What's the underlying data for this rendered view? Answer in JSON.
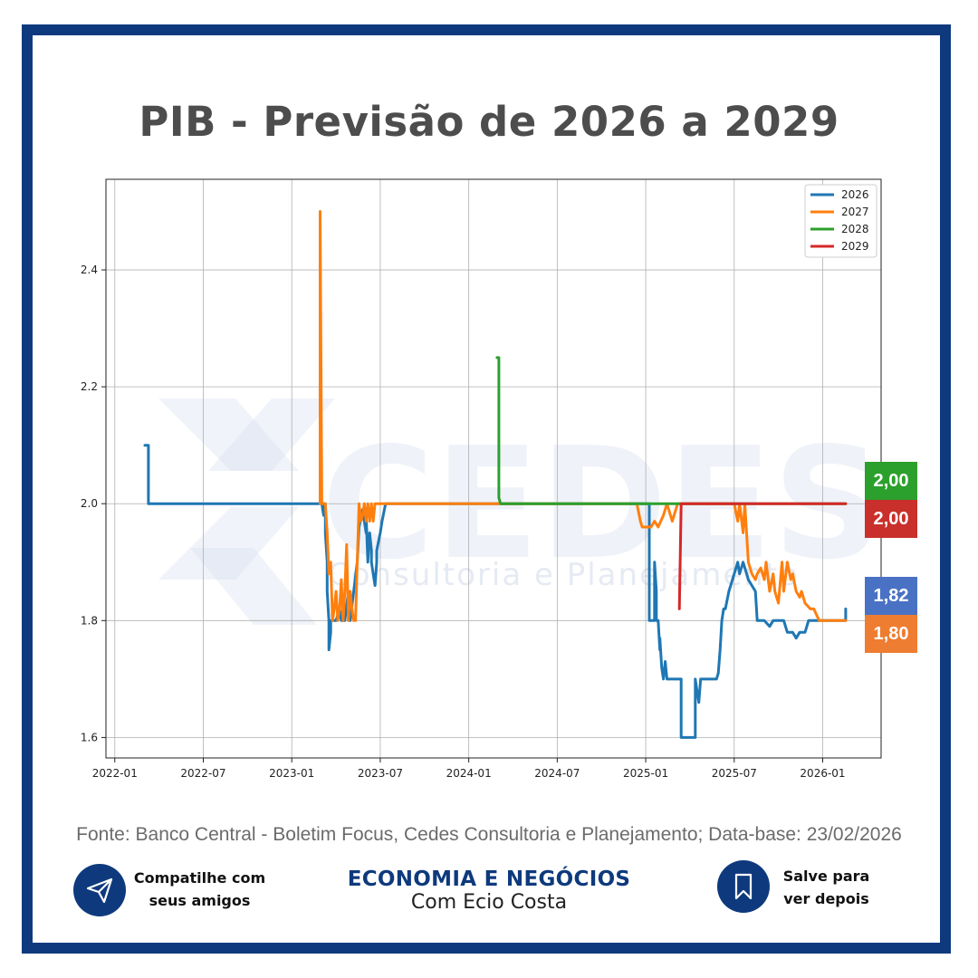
{
  "title": "PIB - Previsão de 2026 a 2029",
  "watermark": {
    "name": "CEDES",
    "tagline": "Consultoria e Planejamento"
  },
  "source": "Fonte: Banco Central - Boletim Focus, Cedes Consultoria e Planejamento; Data-base: 23/02/2026",
  "share": {
    "line1": "Compatilhe com",
    "line2": "seus amigos",
    "icon": "paper-plane-icon"
  },
  "save": {
    "line1": "Salve para",
    "line2": "ver depois",
    "icon": "bookmark-icon"
  },
  "brand": {
    "title": "ECONOMIA E NEGÓCIOS",
    "subtitle": "Com Ecio Costa"
  },
  "badges": [
    {
      "label": "2,00",
      "series": "2028",
      "color": "#2ca02c"
    },
    {
      "label": "2,00",
      "series": "2029",
      "color": "#c9302c"
    },
    {
      "label": "1,82",
      "series": "2026",
      "color": "#4a72c4"
    },
    {
      "label": "1,80",
      "series": "2027",
      "color": "#ee7d31"
    }
  ],
  "chart_data": {
    "type": "line",
    "title": "",
    "xlabel": "",
    "ylabel": "",
    "xlim": [
      2021.95,
      2026.33
    ],
    "ylim": [
      1.565,
      2.555
    ],
    "grid": true,
    "legend_position": "top-right",
    "x_ticks": [
      {
        "label": "2022-01",
        "value": 2022.0
      },
      {
        "label": "2022-07",
        "value": 2022.5
      },
      {
        "label": "2023-01",
        "value": 2023.0
      },
      {
        "label": "2023-07",
        "value": 2023.5
      },
      {
        "label": "2024-01",
        "value": 2024.0
      },
      {
        "label": "2024-07",
        "value": 2024.5
      },
      {
        "label": "2025-01",
        "value": 2025.0
      },
      {
        "label": "2025-07",
        "value": 2025.5
      },
      {
        "label": "2026-01",
        "value": 2026.0
      }
    ],
    "y_ticks": [
      {
        "label": "1.6",
        "value": 1.6
      },
      {
        "label": "1.8",
        "value": 1.8
      },
      {
        "label": "2.0",
        "value": 2.0
      },
      {
        "label": "2.2",
        "value": 2.2
      },
      {
        "label": "2.4",
        "value": 2.4
      }
    ],
    "series": [
      {
        "name": "2026",
        "color": "#1f77b4",
        "x": [
          2022.17,
          2022.19,
          2022.19,
          2022.21,
          2023.17,
          2023.18,
          2023.18,
          2023.19,
          2023.19,
          2023.2,
          2023.2,
          2023.21,
          2023.21,
          2023.22,
          2023.22,
          2023.23,
          2023.23,
          2023.25,
          2023.27,
          2023.28,
          2023.3,
          2023.32,
          2023.33,
          2023.35,
          2023.37,
          2023.38,
          2023.4,
          2023.42,
          2023.42,
          2023.43,
          2023.44,
          2023.45,
          2023.45,
          2023.46,
          2023.47,
          2023.48,
          2023.48,
          2023.5,
          2023.51,
          2023.53,
          2023.54,
          2023.55,
          2023.56,
          2023.56,
          2023.57,
          2023.6,
          2025.0,
          2025.02,
          2025.02,
          2025.03,
          2025.05,
          2025.05,
          2025.06,
          2025.06,
          2025.07,
          2025.08,
          2025.08,
          2025.09,
          2025.1,
          2025.11,
          2025.12,
          2025.13,
          2025.15,
          2025.17,
          2025.2,
          2025.2,
          2025.23,
          2025.27,
          2025.28,
          2025.28,
          2025.29,
          2025.3,
          2025.31,
          2025.32,
          2025.33,
          2025.35,
          2025.38,
          2025.4,
          2025.41,
          2025.42,
          2025.43,
          2025.44,
          2025.45,
          2025.47,
          2025.48,
          2025.5,
          2025.52,
          2025.53,
          2025.55,
          2025.57,
          2025.58,
          2025.6,
          2025.62,
          2025.63,
          2025.65,
          2025.67,
          2025.7,
          2025.72,
          2025.75,
          2025.78,
          2025.8,
          2025.82,
          2025.83,
          2025.85,
          2025.87,
          2025.9,
          2025.92,
          2025.93,
          2025.95,
          2025.97,
          2026.0,
          2026.03,
          2026.05,
          2026.08,
          2026.1,
          2026.13,
          2026.13
        ],
        "y": [
          2.1,
          2.1,
          2.0,
          2.0,
          2.0,
          1.98,
          2.0,
          2.0,
          1.95,
          1.9,
          1.85,
          1.8,
          1.75,
          1.78,
          1.8,
          1.8,
          1.8,
          1.8,
          1.82,
          1.8,
          1.8,
          1.85,
          1.8,
          1.85,
          1.9,
          1.96,
          1.99,
          1.95,
          1.98,
          1.9,
          1.95,
          1.92,
          1.9,
          1.88,
          1.86,
          1.9,
          1.92,
          1.95,
          1.97,
          2.0,
          2.0,
          2.0,
          2.0,
          2.0,
          2.0,
          2.0,
          2.0,
          2.0,
          1.8,
          1.8,
          1.8,
          1.9,
          1.85,
          1.8,
          1.8,
          1.75,
          1.77,
          1.72,
          1.7,
          1.73,
          1.7,
          1.7,
          1.7,
          1.7,
          1.7,
          1.6,
          1.6,
          1.6,
          1.6,
          1.7,
          1.68,
          1.66,
          1.7,
          1.7,
          1.7,
          1.7,
          1.7,
          1.7,
          1.71,
          1.75,
          1.8,
          1.82,
          1.82,
          1.85,
          1.86,
          1.88,
          1.9,
          1.88,
          1.9,
          1.88,
          1.87,
          1.86,
          1.85,
          1.8,
          1.8,
          1.8,
          1.79,
          1.8,
          1.8,
          1.8,
          1.78,
          1.78,
          1.78,
          1.77,
          1.78,
          1.78,
          1.8,
          1.8,
          1.8,
          1.8,
          1.8,
          1.8,
          1.8,
          1.8,
          1.8,
          1.8,
          1.82
        ]
      },
      {
        "name": "2027",
        "color": "#ff7f0e",
        "x": [
          2023.16,
          2023.16,
          2023.17,
          2023.19,
          2023.2,
          2023.21,
          2023.22,
          2023.23,
          2023.24,
          2023.25,
          2023.26,
          2023.27,
          2023.28,
          2023.29,
          2023.3,
          2023.31,
          2023.32,
          2023.33,
          2023.34,
          2023.35,
          2023.36,
          2023.37,
          2023.38,
          2023.39,
          2023.4,
          2023.41,
          2023.42,
          2023.43,
          2023.44,
          2023.45,
          2023.46,
          2023.47,
          2023.48,
          2023.49,
          2023.5,
          2023.52,
          2023.55,
          2023.6,
          2024.17,
          2024.2,
          2024.5,
          2024.9,
          2024.95,
          2024.97,
          2024.98,
          2025.0,
          2025.03,
          2025.05,
          2025.07,
          2025.1,
          2025.12,
          2025.15,
          2025.18,
          2025.2,
          2025.2,
          2025.22,
          2025.25,
          2025.3,
          2025.4,
          2025.45,
          2025.5,
          2025.52,
          2025.53,
          2025.55,
          2025.56,
          2025.58,
          2025.6,
          2025.62,
          2025.63,
          2025.65,
          2025.67,
          2025.68,
          2025.7,
          2025.72,
          2025.73,
          2025.75,
          2025.77,
          2025.78,
          2025.8,
          2025.82,
          2025.83,
          2025.85,
          2025.87,
          2025.88,
          2025.9,
          2025.93,
          2025.95,
          2025.98,
          2026.0,
          2026.05,
          2026.1,
          2026.13
        ],
        "y": [
          2.0,
          2.5,
          2.0,
          2.0,
          1.95,
          1.88,
          1.9,
          1.8,
          1.82,
          1.85,
          1.8,
          1.82,
          1.87,
          1.8,
          1.85,
          1.93,
          1.8,
          1.85,
          1.82,
          1.8,
          1.8,
          1.9,
          2.0,
          1.97,
          1.98,
          2.0,
          1.97,
          2.0,
          1.97,
          2.0,
          1.97,
          2.0,
          2.0,
          2.0,
          2.0,
          2.0,
          2.0,
          2.0,
          2.0,
          2.0,
          2.0,
          2.0,
          2.0,
          1.97,
          1.96,
          1.96,
          1.96,
          1.97,
          1.96,
          1.98,
          2.0,
          1.97,
          2.0,
          2.0,
          2.0,
          2.0,
          2.0,
          2.0,
          2.0,
          2.0,
          2.0,
          1.97,
          2.0,
          1.95,
          2.0,
          1.9,
          1.88,
          1.87,
          1.88,
          1.89,
          1.87,
          1.9,
          1.85,
          1.88,
          1.85,
          1.83,
          1.9,
          1.85,
          1.9,
          1.87,
          1.88,
          1.85,
          1.84,
          1.85,
          1.83,
          1.82,
          1.82,
          1.8,
          1.8,
          1.8,
          1.8,
          1.8
        ]
      },
      {
        "name": "2028",
        "color": "#2ca02c",
        "x": [
          2024.16,
          2024.17,
          2024.17,
          2024.18,
          2024.2,
          2024.6,
          2025.0,
          2025.5,
          2026.13
        ],
        "y": [
          2.25,
          2.25,
          2.01,
          2.0,
          2.0,
          2.0,
          2.0,
          2.0,
          2.0
        ]
      },
      {
        "name": "2029",
        "color": "#d62728",
        "x": [
          2025.19,
          2025.2,
          2025.2,
          2025.22,
          2025.5,
          2025.8,
          2026.13
        ],
        "y": [
          1.82,
          2.0,
          2.0,
          2.0,
          2.0,
          2.0,
          2.0
        ]
      }
    ]
  }
}
